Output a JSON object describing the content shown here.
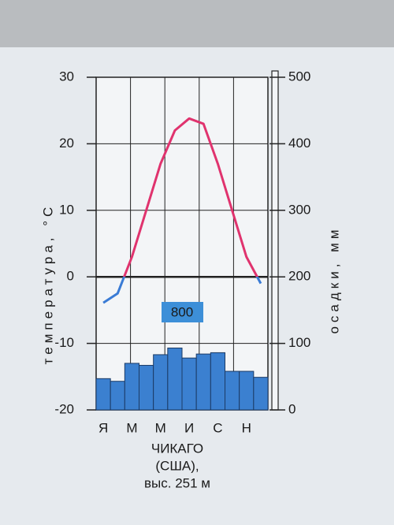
{
  "chart_data": {
    "type": "climate",
    "categories": [
      "Я",
      null,
      "М",
      null,
      "М",
      null,
      "И",
      null,
      "С",
      null,
      "Н",
      null
    ],
    "series": [
      {
        "name": "температура",
        "type": "line",
        "color": "#e0336e",
        "below_zero_color": "#3a7bd5",
        "values": [
          -3.9,
          -2.5,
          3,
          10,
          17,
          22,
          23.8,
          23,
          17,
          10,
          3,
          -1
        ]
      },
      {
        "name": "осадки",
        "type": "bar",
        "axis": "y2",
        "color": "#3b80d0",
        "values": [
          47,
          43,
          70,
          67,
          83,
          93,
          78,
          84,
          86,
          58,
          58,
          49
        ]
      }
    ],
    "ylabel": "температура, °С",
    "y2label": "осадки, мм",
    "ylim": [
      -20,
      30
    ],
    "yticks": [
      -20,
      -10,
      0,
      10,
      20,
      30
    ],
    "y2lim": [
      0,
      500
    ],
    "y2ticks": [
      0,
      100,
      200,
      300,
      400,
      500
    ],
    "grid": true,
    "annotation": "800",
    "caption": [
      "ЧИКАГО",
      "(США),",
      "выс. 251 м"
    ]
  }
}
